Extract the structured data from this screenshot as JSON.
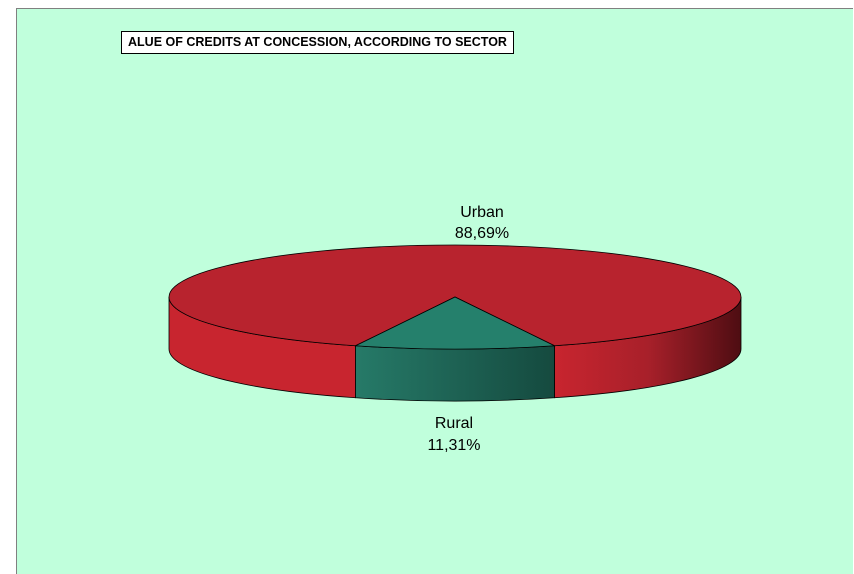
{
  "chart_data": {
    "type": "pie",
    "title": "ALUE OF CREDITS AT CONCESSION, ACCORDING TO SECTOR",
    "slices": [
      {
        "label": "Urban",
        "value": 88.69,
        "value_label": "88,69%",
        "color": "#b8232e"
      },
      {
        "label": "Rural",
        "value": 11.31,
        "value_label": "11,31%",
        "color": "#25806c"
      }
    ],
    "background": "#c0ffdc"
  }
}
